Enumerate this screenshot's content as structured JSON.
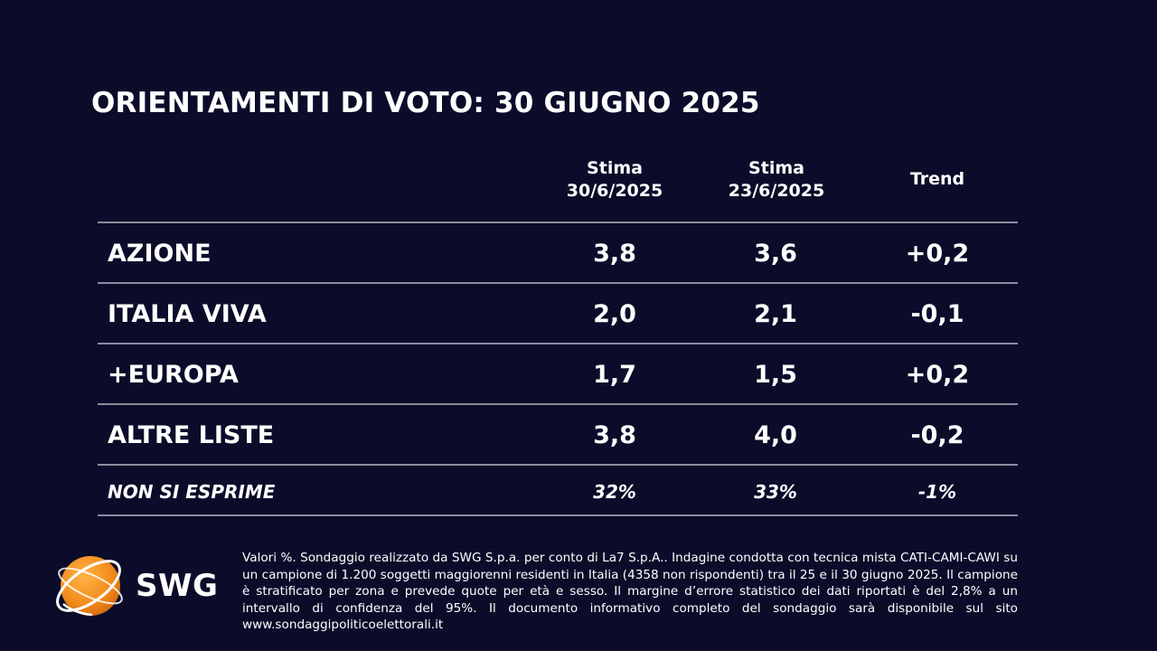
{
  "title": "ORIENTAMENTI DI VOTO: 30 GIUGNO 2025",
  "chart_data": {
    "type": "table",
    "title": "ORIENTAMENTI DI VOTO: 30 GIUGNO 2025",
    "columns": [
      {
        "line1": "Stima",
        "line2": "30/6/2025"
      },
      {
        "line1": "Stima",
        "line2": "23/6/2025"
      },
      {
        "line1": "Trend",
        "line2": ""
      }
    ],
    "rows": [
      {
        "label": "AZIONE",
        "values": [
          "3,8",
          "3,6",
          "+0,2"
        ]
      },
      {
        "label": "ITALIA VIVA",
        "values": [
          "2,0",
          "2,1",
          "-0,1"
        ]
      },
      {
        "label": "+EUROPA",
        "values": [
          "1,7",
          "1,5",
          "+0,2"
        ]
      },
      {
        "label": "ALTRE LISTE",
        "values": [
          "3,8",
          "4,0",
          "-0,2"
        ]
      },
      {
        "label": "NON SI ESPRIME",
        "values": [
          "32%",
          "33%",
          "-1%"
        ],
        "italic": true
      }
    ]
  },
  "footnote": "Valori %. Sondaggio realizzato da SWG S.p.a. per conto di La7 S.p.A.. Indagine condotta con tecnica mista CATI-CAMI-CAWI su un campione di 1.200 soggetti maggiorenni residenti in Italia (4358 non rispondenti) tra il 25 e il 30 giugno 2025. Il campione è stratificato per zona e prevede quote per età e sesso. Il margine d’errore statistico dei dati riportati è del 2,8% a un intervallo di confidenza del 95%. Il documento informativo completo del sondaggio sarà disponibile sul sito www.sondaggipoliticoelettorali.it",
  "logo": {
    "text": "SWG",
    "icon": "swg-globe-logo-icon",
    "colors": {
      "orange": "#f28c1c",
      "orange_light": "#ffb347",
      "ring": "#ffffff"
    }
  },
  "colors": {
    "background": "#0b0c2a",
    "text": "#ffffff",
    "separator": "#8c8c9e"
  }
}
